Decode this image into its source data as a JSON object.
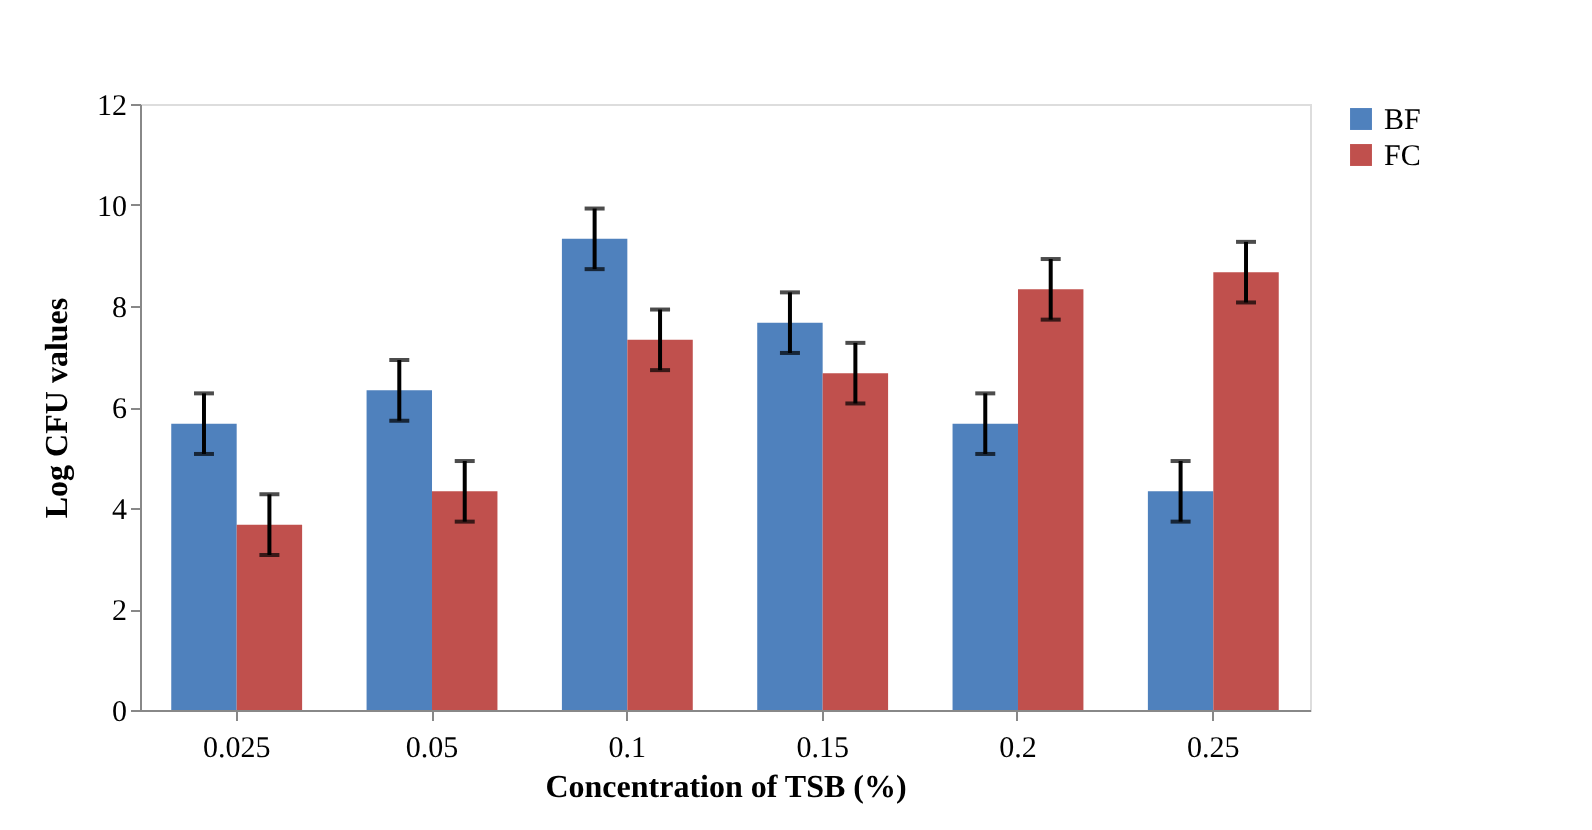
{
  "chart_data": {
    "type": "bar",
    "xlabel": "Concentration of TSB (%)",
    "ylabel": "Log CFU values",
    "categories": [
      "0.025",
      "0.05",
      "0.1",
      "0.15",
      "0.2",
      "0.25"
    ],
    "series": [
      {
        "name": "BF",
        "color": "#4f81bd",
        "values": [
          5.67,
          6.33,
          9.33,
          7.67,
          5.67,
          4.33
        ],
        "errors": [
          0.6,
          0.6,
          0.6,
          0.6,
          0.6,
          0.6
        ]
      },
      {
        "name": "FC",
        "color": "#c0504d",
        "values": [
          3.67,
          4.33,
          7.33,
          6.67,
          8.33,
          8.67
        ],
        "errors": [
          0.6,
          0.6,
          0.6,
          0.6,
          0.6,
          0.6
        ]
      }
    ],
    "ylim": [
      0,
      12
    ],
    "yticks": [
      0,
      2,
      4,
      6,
      8,
      10,
      12
    ],
    "grid": false,
    "legend": "right"
  }
}
